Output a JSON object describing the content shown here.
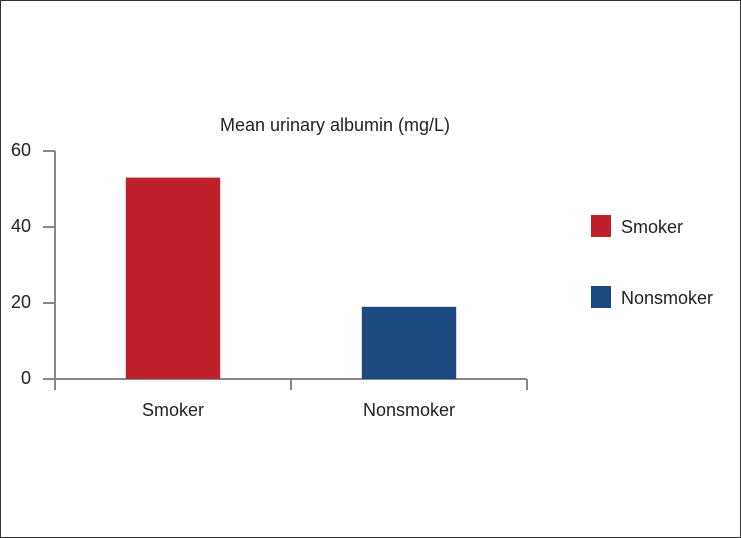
{
  "chart_data": {
    "type": "bar",
    "title": "Mean urinary albumin (mg/L)",
    "categories": [
      "Smoker",
      "Nonsmoker"
    ],
    "values": [
      53,
      19
    ],
    "colors": [
      "#c0202a",
      "#1c4a80"
    ],
    "ylim": [
      0,
      60
    ],
    "yticks": [
      0,
      20,
      40,
      60
    ],
    "grid": false,
    "legend": "right"
  }
}
